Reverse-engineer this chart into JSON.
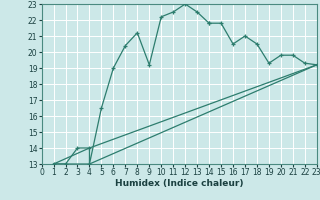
{
  "xlabel": "Humidex (Indice chaleur)",
  "bg_color": "#cce8e8",
  "grid_color": "#ffffff",
  "line_color": "#2d7d6e",
  "xlim": [
    0,
    23
  ],
  "ylim": [
    13,
    23
  ],
  "xticks": [
    0,
    1,
    2,
    3,
    4,
    5,
    6,
    7,
    8,
    9,
    10,
    11,
    12,
    13,
    14,
    15,
    16,
    17,
    18,
    19,
    20,
    21,
    22,
    23
  ],
  "yticks": [
    13,
    14,
    15,
    16,
    17,
    18,
    19,
    20,
    21,
    22,
    23
  ],
  "series1_x": [
    1,
    2,
    3,
    4,
    4,
    5,
    6,
    7,
    8,
    9,
    10,
    11,
    12,
    13,
    14,
    14,
    15,
    16,
    17,
    18,
    19,
    20,
    21,
    22,
    23
  ],
  "series1_y": [
    13,
    13,
    14,
    14,
    13,
    16.5,
    19,
    20.4,
    21.2,
    19.2,
    22.2,
    22.5,
    23.0,
    22.5,
    21.8,
    21.8,
    21.8,
    20.5,
    21.0,
    20.5,
    19.3,
    19.8,
    19.8,
    19.3,
    19.2
  ],
  "series2_x": [
    1,
    4,
    23
  ],
  "series2_y": [
    13,
    14,
    19.2
  ],
  "series3_x": [
    1,
    4,
    23
  ],
  "series3_y": [
    13,
    13,
    19.2
  ]
}
